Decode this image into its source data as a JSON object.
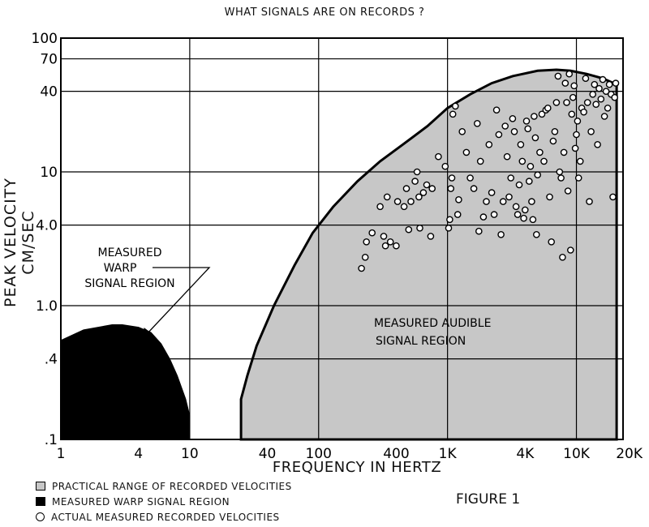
{
  "chart_data": {
    "type": "scatter",
    "title": "WHAT SIGNALS ARE ON RECORDS ?",
    "xlabel": "FREQUENCY IN HERTZ",
    "ylabel": "PEAK VELOCITY CM/SEC",
    "xscale": "log",
    "yscale": "log",
    "xlim": [
      1,
      23000
    ],
    "ylim": [
      0.1,
      100
    ],
    "grid": true,
    "legend_position": "bottom-left",
    "x_ticks": [
      {
        "value": 1,
        "label": "1"
      },
      {
        "value": 4,
        "label": "4"
      },
      {
        "value": 10,
        "label": "10"
      },
      {
        "value": 40,
        "label": "40"
      },
      {
        "value": 100,
        "label": "100"
      },
      {
        "value": 400,
        "label": "400"
      },
      {
        "value": 1000,
        "label": "1K"
      },
      {
        "value": 4000,
        "label": "4K"
      },
      {
        "value": 10000,
        "label": "10K"
      },
      {
        "value": 20000,
        "label": "20K"
      }
    ],
    "y_ticks": [
      {
        "value": 0.1,
        "label": ".1"
      },
      {
        "value": 0.4,
        "label": ".4"
      },
      {
        "value": 1,
        "label": "1.0"
      },
      {
        "value": 4,
        "label": "4.0"
      },
      {
        "value": 10,
        "label": "10"
      },
      {
        "value": 40,
        "label": "40"
      },
      {
        "value": 70,
        "label": "70"
      },
      {
        "value": 100,
        "label": "100"
      }
    ],
    "x_gridlines": [
      1,
      10,
      100,
      1000,
      10000
    ],
    "y_gridlines": [
      0.4,
      1,
      4,
      10,
      40,
      70
    ],
    "annotations": [
      {
        "text": "MEASURED\nWARP\nSIGNAL REGION",
        "x": 3.5,
        "y": 2.5
      },
      {
        "text": "MEASURED AUDIBLE\nSIGNAL REGION",
        "x": 1300,
        "y": 0.75
      }
    ],
    "legend": [
      {
        "label": "PRACTICAL RANGE OF RECORDED VELOCITIES",
        "marker": "gray-box"
      },
      {
        "label": "MEASURED WARP SIGNAL REGION",
        "marker": "black-box"
      },
      {
        "label": "ACTUAL MEASURED RECORDED VELOCITIES",
        "marker": "circle"
      }
    ],
    "figure_label": "FIGURE 1",
    "regions": {
      "warp": {
        "fill": "#000000",
        "boundary": [
          [
            1,
            0.1
          ],
          [
            1,
            0.55
          ],
          [
            1.5,
            0.66
          ],
          [
            2.5,
            0.72
          ],
          [
            3,
            0.72
          ],
          [
            4,
            0.69
          ],
          [
            5,
            0.63
          ],
          [
            6,
            0.52
          ],
          [
            7,
            0.4
          ],
          [
            8,
            0.3
          ],
          [
            9.3,
            0.2
          ],
          [
            10,
            0.15
          ],
          [
            10,
            0.1
          ]
        ]
      },
      "audible": {
        "fill": "#c7c7c7",
        "boundary": [
          [
            25,
            0.1
          ],
          [
            25,
            0.2
          ],
          [
            28,
            0.3
          ],
          [
            33,
            0.5
          ],
          [
            45,
            1.0
          ],
          [
            65,
            2.0
          ],
          [
            90,
            3.5
          ],
          [
            130,
            5.5
          ],
          [
            200,
            8.5
          ],
          [
            300,
            12
          ],
          [
            450,
            16
          ],
          [
            700,
            22
          ],
          [
            1000,
            30
          ],
          [
            1500,
            38
          ],
          [
            2200,
            46
          ],
          [
            3200,
            52
          ],
          [
            5000,
            57
          ],
          [
            7000,
            58
          ],
          [
            9000,
            57
          ],
          [
            12000,
            54
          ],
          [
            16000,
            50
          ],
          [
            20500,
            45
          ],
          [
            20500,
            0.1
          ]
        ]
      }
    },
    "series": [
      {
        "name": "ACTUAL MEASURED RECORDED VELOCITIES",
        "points": [
          [
            215,
            1.9
          ],
          [
            230,
            2.3
          ],
          [
            235,
            3.0
          ],
          [
            260,
            3.5
          ],
          [
            300,
            5.5
          ],
          [
            320,
            3.3
          ],
          [
            330,
            2.8
          ],
          [
            340,
            6.5
          ],
          [
            360,
            3.0
          ],
          [
            400,
            2.8
          ],
          [
            410,
            6.0
          ],
          [
            460,
            5.5
          ],
          [
            480,
            7.5
          ],
          [
            500,
            3.7
          ],
          [
            520,
            6.0
          ],
          [
            560,
            8.5
          ],
          [
            580,
            10.0
          ],
          [
            600,
            6.5
          ],
          [
            610,
            3.8
          ],
          [
            650,
            7.0
          ],
          [
            690,
            8.0
          ],
          [
            740,
            3.3
          ],
          [
            760,
            7.5
          ],
          [
            850,
            13.0
          ],
          [
            960,
            11.0
          ],
          [
            1020,
            3.8
          ],
          [
            1040,
            4.4
          ],
          [
            1060,
            7.5
          ],
          [
            1080,
            9.0
          ],
          [
            1100,
            27
          ],
          [
            1150,
            31
          ],
          [
            1200,
            4.8
          ],
          [
            1220,
            6.2
          ],
          [
            1300,
            20
          ],
          [
            1400,
            14
          ],
          [
            1500,
            9.0
          ],
          [
            1600,
            7.5
          ],
          [
            1700,
            23
          ],
          [
            1750,
            3.6
          ],
          [
            1800,
            12
          ],
          [
            1900,
            4.6
          ],
          [
            2000,
            6.0
          ],
          [
            2100,
            16
          ],
          [
            2200,
            7.0
          ],
          [
            2300,
            4.8
          ],
          [
            2400,
            29
          ],
          [
            2500,
            19
          ],
          [
            2600,
            3.4
          ],
          [
            2700,
            6.0
          ],
          [
            2800,
            22
          ],
          [
            2900,
            13
          ],
          [
            3000,
            6.5
          ],
          [
            3100,
            9.0
          ],
          [
            3200,
            25
          ],
          [
            3300,
            20
          ],
          [
            3400,
            5.5
          ],
          [
            3500,
            4.8
          ],
          [
            3600,
            8.0
          ],
          [
            3700,
            16
          ],
          [
            3800,
            12
          ],
          [
            3900,
            4.5
          ],
          [
            4000,
            5.2
          ],
          [
            4100,
            24
          ],
          [
            4200,
            21
          ],
          [
            4300,
            8.5
          ],
          [
            4400,
            11
          ],
          [
            4500,
            6.0
          ],
          [
            4600,
            4.4
          ],
          [
            4700,
            26
          ],
          [
            4800,
            18
          ],
          [
            4900,
            3.4
          ],
          [
            5000,
            9.5
          ],
          [
            5200,
            14
          ],
          [
            5400,
            27
          ],
          [
            5600,
            12
          ],
          [
            5800,
            29
          ],
          [
            6000,
            30
          ],
          [
            6200,
            6.5
          ],
          [
            6400,
            3.0
          ],
          [
            6600,
            17
          ],
          [
            6800,
            20
          ],
          [
            7000,
            33
          ],
          [
            7200,
            52
          ],
          [
            7400,
            10
          ],
          [
            7600,
            9.0
          ],
          [
            7800,
            2.3
          ],
          [
            8000,
            14
          ],
          [
            8200,
            46
          ],
          [
            8400,
            33
          ],
          [
            8600,
            7.2
          ],
          [
            8800,
            54
          ],
          [
            9000,
            2.6
          ],
          [
            9200,
            27
          ],
          [
            9400,
            36
          ],
          [
            9600,
            44
          ],
          [
            9800,
            15
          ],
          [
            10000,
            19
          ],
          [
            10200,
            24
          ],
          [
            10400,
            9.0
          ],
          [
            10700,
            12
          ],
          [
            11000,
            30
          ],
          [
            11400,
            28
          ],
          [
            11800,
            50
          ],
          [
            12200,
            33
          ],
          [
            12600,
            6.0
          ],
          [
            13000,
            20
          ],
          [
            13400,
            38
          ],
          [
            13800,
            45
          ],
          [
            14200,
            32
          ],
          [
            14600,
            16
          ],
          [
            15000,
            42
          ],
          [
            15500,
            35
          ],
          [
            16000,
            49
          ],
          [
            16500,
            26
          ],
          [
            17000,
            40
          ],
          [
            17500,
            30
          ],
          [
            18000,
            45
          ],
          [
            18600,
            38
          ],
          [
            19200,
            6.5
          ],
          [
            19800,
            36
          ],
          [
            20200,
            46
          ]
        ]
      }
    ]
  }
}
